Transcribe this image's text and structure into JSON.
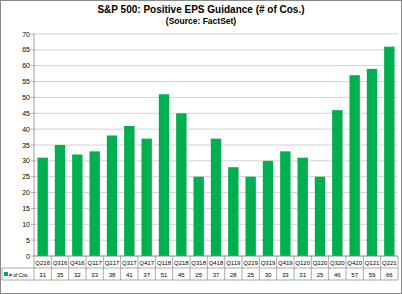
{
  "chart_data": {
    "type": "bar",
    "title": "S&P 500: Positive EPS Guidance (# of Cos.)",
    "subtitle": "(Source: FactSet)",
    "categories": [
      "Q216",
      "Q316",
      "Q416",
      "Q117",
      "Q217",
      "Q317",
      "Q417",
      "Q118",
      "Q218",
      "Q318",
      "Q418",
      "Q119",
      "Q219",
      "Q319",
      "Q419",
      "Q120",
      "Q220",
      "Q320",
      "Q420",
      "Q121",
      "Q221"
    ],
    "series": [
      {
        "name": "# of Cos.",
        "color": "#00b050",
        "values": [
          31,
          35,
          32,
          33,
          38,
          41,
          37,
          51,
          45,
          25,
          37,
          28,
          25,
          30,
          33,
          31,
          25,
          46,
          57,
          59,
          66
        ]
      }
    ],
    "ylim": [
      0,
      70
    ],
    "yticks": [
      0,
      5,
      10,
      15,
      20,
      25,
      30,
      35,
      40,
      45,
      50,
      55,
      60,
      65,
      70
    ],
    "grid": true
  }
}
